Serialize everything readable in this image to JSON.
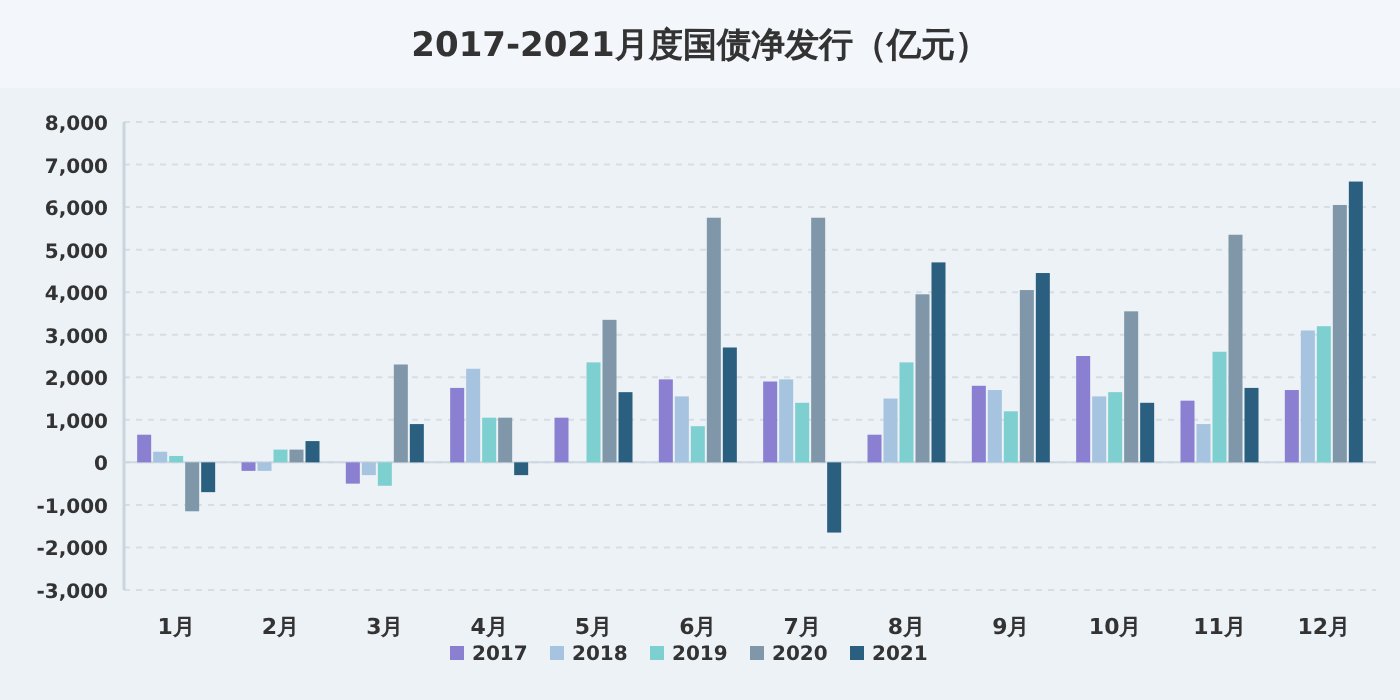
{
  "chart_data": {
    "type": "bar",
    "title": "2017-2021月度国债净发行（亿元）",
    "categories": [
      "1月",
      "2月",
      "3月",
      "4月",
      "5月",
      "6月",
      "7月",
      "8月",
      "9月",
      "10月",
      "11月",
      "12月"
    ],
    "series": [
      {
        "name": "2017",
        "color": "#8a7fd0",
        "values": [
          650,
          -200,
          -500,
          1750,
          1050,
          1950,
          1900,
          650,
          1800,
          2500,
          1450,
          1700
        ]
      },
      {
        "name": "2018",
        "color": "#a6c3e0",
        "values": [
          250,
          -200,
          -300,
          2200,
          null,
          1550,
          1950,
          1500,
          1700,
          1550,
          900,
          3100
        ]
      },
      {
        "name": "2019",
        "color": "#7ecfcf",
        "values": [
          150,
          300,
          -550,
          1050,
          2350,
          850,
          1400,
          2350,
          1200,
          1650,
          2600,
          3200
        ]
      },
      {
        "name": "2020",
        "color": "#7f97a8",
        "values": [
          -1150,
          300,
          2300,
          1050,
          3350,
          5750,
          5750,
          3950,
          4050,
          3550,
          5350,
          6050
        ]
      },
      {
        "name": "2021",
        "color": "#2a5f80",
        "values": [
          -700,
          500,
          900,
          -300,
          1650,
          2700,
          -1650,
          4700,
          4450,
          1400,
          1750,
          6600
        ]
      }
    ],
    "ylim": [
      -3000,
      8000
    ],
    "yticks": [
      {
        "value": -3000,
        "label": "-3,000"
      },
      {
        "value": -2000,
        "label": "-2,000"
      },
      {
        "value": -1000,
        "label": "-1,000"
      },
      0,
      {
        "value": 1000,
        "label": "1,000"
      },
      {
        "value": 2000,
        "label": "2,000"
      },
      {
        "value": 3000,
        "label": "3,000"
      },
      {
        "value": 4000,
        "label": "4,000"
      },
      {
        "value": 5000,
        "label": "5,000"
      },
      {
        "value": 6000,
        "label": "6,000"
      },
      {
        "value": 7000,
        "label": "7,000"
      },
      {
        "value": 8000,
        "label": "8,000"
      }
    ],
    "grid": "y",
    "legend": "bottom"
  }
}
